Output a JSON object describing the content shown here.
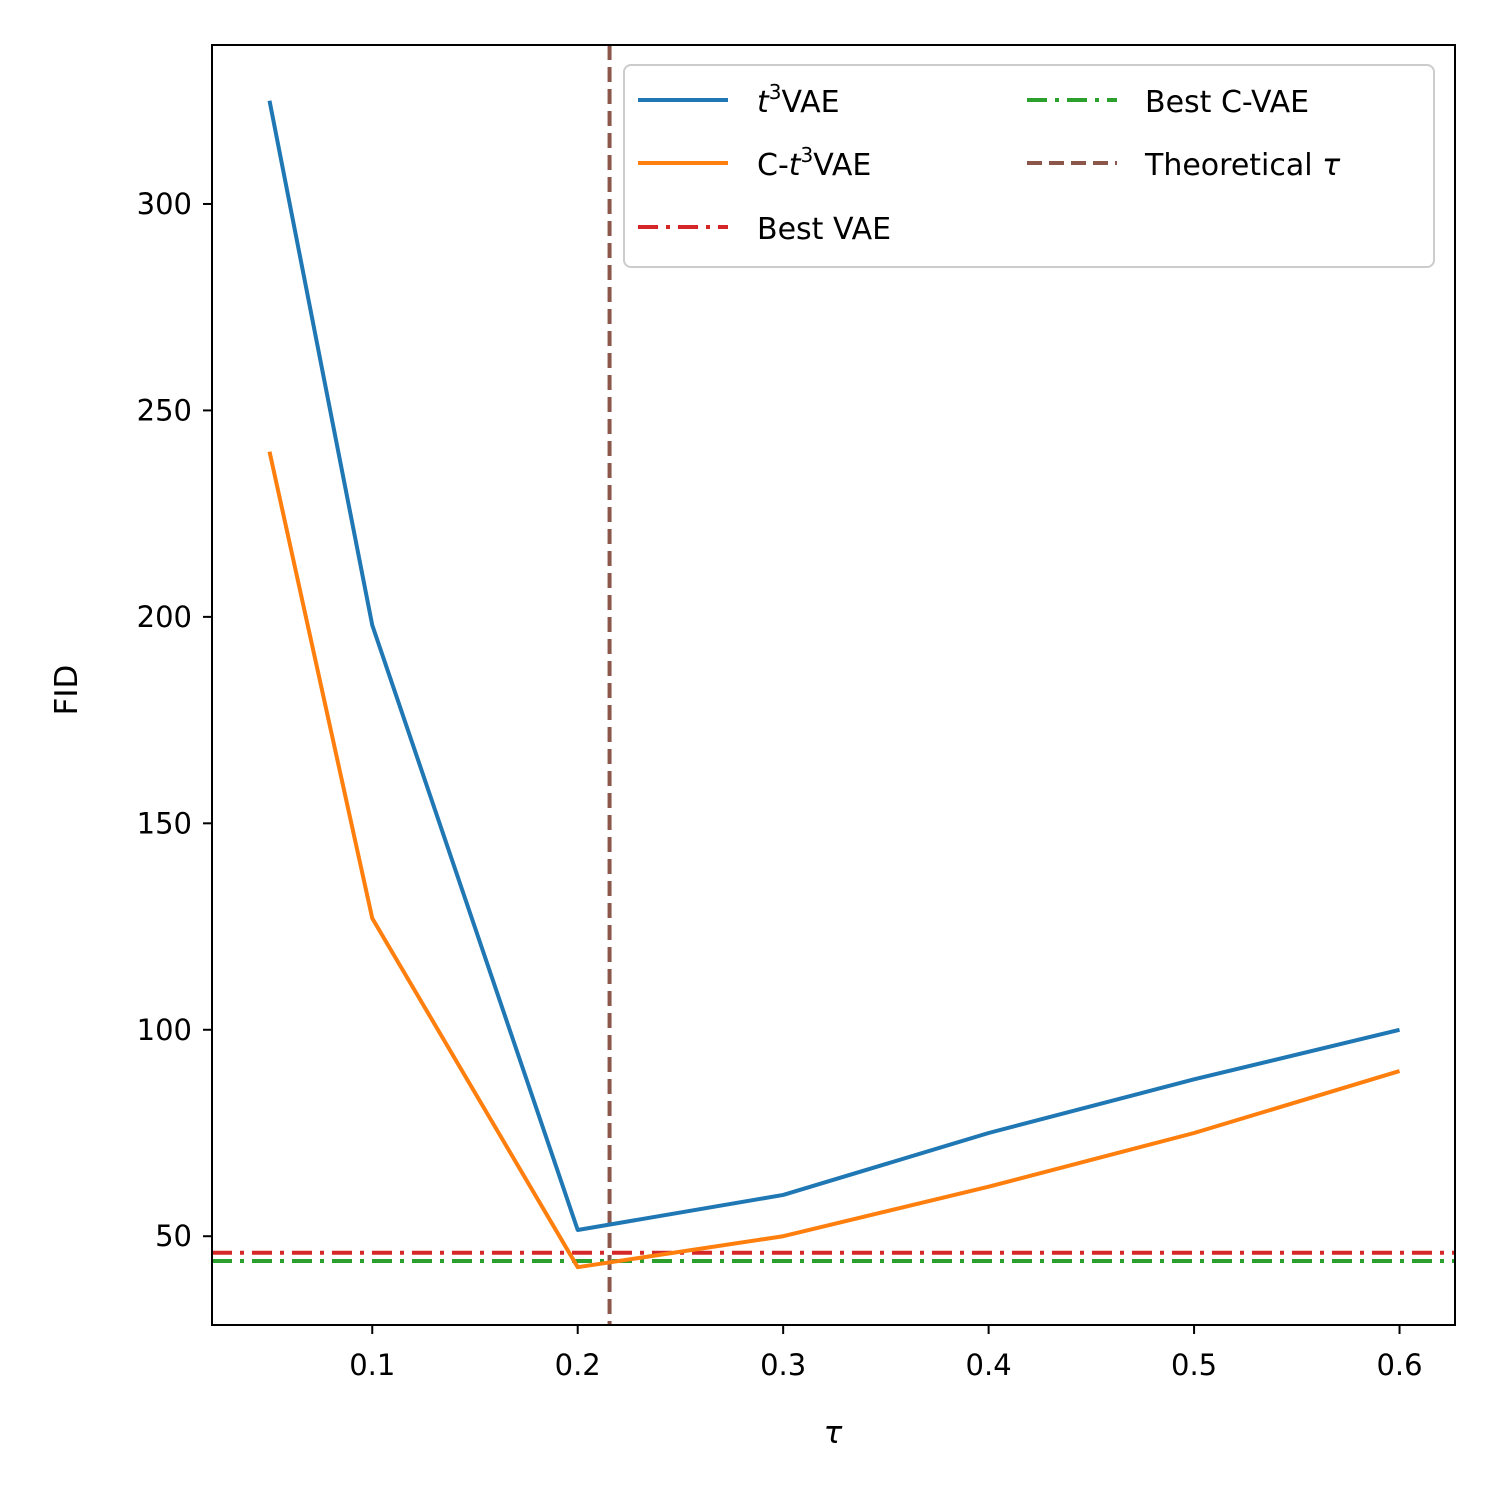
{
  "chart_data": {
    "type": "line",
    "title": "",
    "xlabel": "τ",
    "ylabel": "FID",
    "xlim": [
      0.022,
      0.627
    ],
    "ylim": [
      28.5,
      338.5
    ],
    "xticks": [
      0.1,
      0.2,
      0.3,
      0.4,
      0.5,
      0.6
    ],
    "xtick_labels": [
      "0.1",
      "0.2",
      "0.3",
      "0.4",
      "0.5",
      "0.6"
    ],
    "yticks": [
      50,
      100,
      150,
      200,
      250,
      300
    ],
    "ytick_labels": [
      "50",
      "100",
      "150",
      "200",
      "250",
      "300"
    ],
    "grid": false,
    "legend_position": "top-right",
    "legend_columns": 2,
    "x": [
      0.05,
      0.1,
      0.2,
      0.3,
      0.4,
      0.5,
      0.6
    ],
    "series": [
      {
        "name": "t³VAE",
        "label_base": "t",
        "label_sup": "3",
        "label_suffix": "VAE",
        "color": "#1f77b4",
        "style": "solid",
        "values": [
          325,
          198,
          51.5,
          60,
          75,
          88,
          100
        ]
      },
      {
        "name": "C-t³VAE",
        "label_prefix": "C-",
        "label_base": "t",
        "label_sup": "3",
        "label_suffix": "VAE",
        "color": "#ff7f0e",
        "style": "solid",
        "values": [
          240,
          127,
          42.5,
          50,
          62,
          75,
          90
        ]
      }
    ],
    "reference_lines": [
      {
        "name": "Best VAE",
        "orientation": "horizontal",
        "value": 46,
        "color": "#d62728",
        "style": "dashdot"
      },
      {
        "name": "Best C-VAE",
        "orientation": "horizontal",
        "value": 44,
        "color": "#2ca02c",
        "style": "dashdot"
      },
      {
        "name": "Theoretical",
        "symbol": "τ",
        "orientation": "vertical",
        "value": 0.2155,
        "color": "#8c564b",
        "style": "dashed"
      }
    ]
  }
}
